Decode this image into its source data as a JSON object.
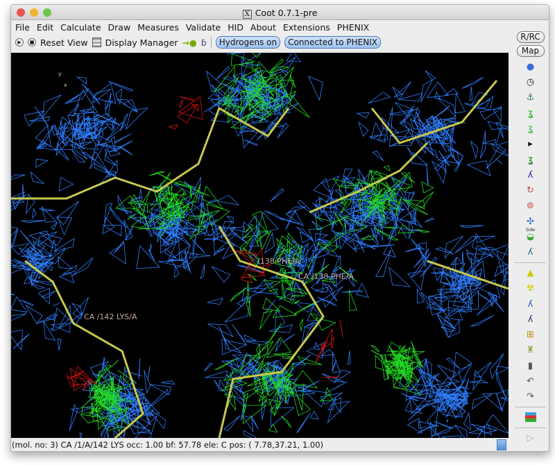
{
  "window": {
    "title": "Coot 0.7.1-pre",
    "x_icon": "X"
  },
  "menu": [
    "File",
    "Edit",
    "Calculate",
    "Draw",
    "Measures",
    "Validate",
    "HID",
    "About",
    "Extensions",
    "PHENIX"
  ],
  "toolbar": {
    "reset_view": "Reset View",
    "display_manager": "Display Manager",
    "hydrogens": "Hydrogens on",
    "phenix": "Connected to PHENIX"
  },
  "right_toolbar": {
    "rrc": "R/RC",
    "map": "Map",
    "side_label": "Side",
    "icons": [
      "rotate-translate-zone-icon",
      "rigid-body-icon",
      "anchor-icon",
      "real-space-refine-icon",
      "regularize-icon",
      "play-triangle-icon",
      "auto-fit-rotamer-icon",
      "rotamer-icon",
      "edit-chi-icon",
      "torsion-icon",
      "flip-peptide-icon",
      "side-chain-icon",
      "mutate-icon"
    ],
    "icons2": [
      "place-atom-hazard-icon",
      "radiation-icon",
      "add-terminal-residue-icon",
      "add-alt-conf-icon",
      "add-box-icon",
      "paint-brush-icon",
      "delete-trash-icon",
      "undo-icon",
      "redo-icon"
    ],
    "flag_icon": "flag-icon",
    "expand_icon": "expand-triangle-icon"
  },
  "viewport": {
    "labels": [
      "CA /142 LYS/A",
      "/138 PHE/A",
      "CA /138 PHE/A"
    ],
    "axes": [
      "x",
      "y"
    ],
    "colors": {
      "map": "#2f7fff",
      "diff_pos": "#22dd22",
      "diff_neg": "#dd1111",
      "bond": "#c8c850"
    }
  },
  "status": "(mol. no: 3)  CA /1/A/142 LYS occ:  1.00 bf: 57.78 ele:  C pos: ( 7.78,37.21, 1.00)"
}
